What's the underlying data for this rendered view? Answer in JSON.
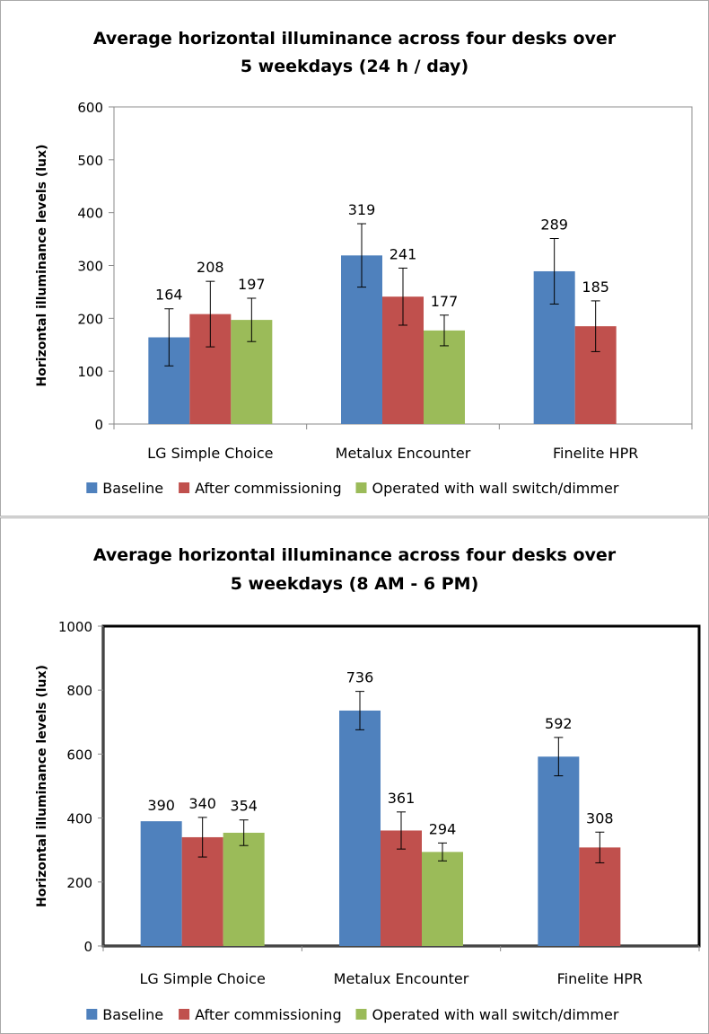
{
  "colors": {
    "baseline": "#4f81bd",
    "after_commissioning": "#c0504d",
    "wall_switch": "#9bbb59"
  },
  "chart_data": [
    {
      "type": "bar",
      "title_line1": "Average horizontal illuminance across four desks over",
      "title_line2": "5 weekdays (24 h / day)",
      "ylabel": "Horizontal illuminance levels (lux)",
      "xlabel": "",
      "ylim": [
        0,
        600
      ],
      "yticks": [
        "0",
        "100",
        "200",
        "300",
        "400",
        "500",
        "600"
      ],
      "grid": false,
      "legend_position": "bottom",
      "categories": [
        "LG Simple Choice",
        "Metalux Encounter",
        "Finelite HPR"
      ],
      "series": [
        {
          "name": "Baseline",
          "color": "#4f81bd",
          "values": [
            164,
            319,
            289
          ],
          "labels": [
            "164",
            "319",
            "289"
          ],
          "err": [
            54,
            60,
            62
          ]
        },
        {
          "name": "After commissioning",
          "color": "#c0504d",
          "values": [
            208,
            241,
            185
          ],
          "labels": [
            "208",
            "241",
            "185"
          ],
          "err": [
            62,
            54,
            48
          ]
        },
        {
          "name": "Operated with wall switch/dimmer",
          "color": "#9bbb59",
          "values": [
            197,
            177,
            null
          ],
          "labels": [
            "197",
            "177",
            ""
          ],
          "err": [
            41,
            29,
            null
          ]
        }
      ]
    },
    {
      "type": "bar",
      "title_line1": "Average horizontal illuminance across four desks over",
      "title_line2": "5 weekdays (8 AM - 6 PM)",
      "ylabel": "Horizontal illuminance levels (lux)",
      "xlabel": "",
      "ylim": [
        0,
        1000
      ],
      "yticks": [
        "0",
        "200",
        "400",
        "600",
        "800",
        "1000"
      ],
      "grid": false,
      "legend_position": "bottom",
      "categories": [
        "LG Simple Choice",
        "Metalux Encounter",
        "Finelite HPR"
      ],
      "series": [
        {
          "name": "Baseline",
          "color": "#4f81bd",
          "values": [
            390,
            736,
            592
          ],
          "labels": [
            "390",
            "736",
            "592"
          ],
          "err": [
            0,
            60,
            60
          ]
        },
        {
          "name": "After commissioning",
          "color": "#c0504d",
          "values": [
            340,
            361,
            308
          ],
          "labels": [
            "340",
            "361",
            "308"
          ],
          "err": [
            62,
            58,
            48
          ]
        },
        {
          "name": "Operated with wall switch/dimmer",
          "color": "#9bbb59",
          "values": [
            354,
            294,
            null
          ],
          "labels": [
            "354",
            "294",
            ""
          ],
          "err": [
            40,
            28,
            null
          ]
        }
      ]
    }
  ]
}
